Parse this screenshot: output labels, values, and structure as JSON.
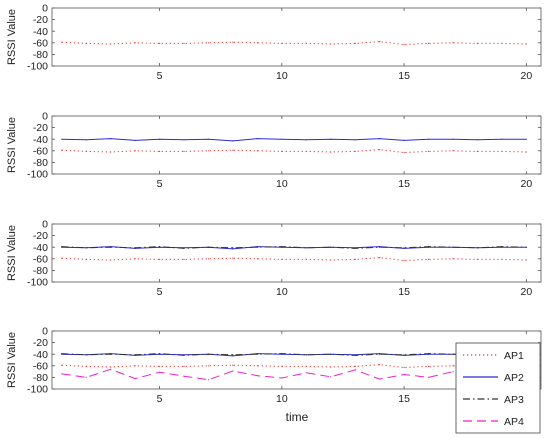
{
  "figure": {
    "xlabel": "time"
  },
  "legend": {
    "placement": "bottom-right",
    "entries": [
      {
        "series": "AP1",
        "label": "AP1"
      },
      {
        "series": "AP2",
        "label": "AP2"
      },
      {
        "series": "AP3",
        "label": "AP3"
      },
      {
        "series": "AP4",
        "label": "AP4"
      }
    ]
  },
  "series_styles": {
    "AP1": {
      "color": "#e8302a",
      "dash": "1.2,2.8"
    },
    "AP2": {
      "color": "#2b2bd8",
      "dash": ""
    },
    "AP3": {
      "color": "#333333",
      "dash": "7,3,1.5,3"
    },
    "AP4": {
      "color": "#ee22cc",
      "dash": "9,5"
    }
  },
  "chart_data": [
    {
      "type": "line",
      "title": "",
      "xlabel": "",
      "ylabel": "RSSI Value",
      "xlim": [
        0.6,
        20.6
      ],
      "ylim": [
        -100,
        0
      ],
      "xticks": [
        5,
        10,
        15,
        20
      ],
      "yticks": [
        0,
        -20,
        -40,
        -60,
        -80,
        -100
      ],
      "grid": false,
      "series": [
        "AP1"
      ]
    },
    {
      "type": "line",
      "title": "",
      "xlabel": "",
      "ylabel": "RSSI Value",
      "xlim": [
        0.6,
        20.6
      ],
      "ylim": [
        -100,
        0
      ],
      "xticks": [
        5,
        10,
        15,
        20
      ],
      "yticks": [
        0,
        -20,
        -40,
        -60,
        -80,
        -100
      ],
      "grid": false,
      "series": [
        "AP1",
        "AP2"
      ]
    },
    {
      "type": "line",
      "title": "",
      "xlabel": "",
      "ylabel": "RSSI Value",
      "xlim": [
        0.6,
        20.6
      ],
      "ylim": [
        -100,
        0
      ],
      "xticks": [
        5,
        10,
        15,
        20
      ],
      "yticks": [
        0,
        -20,
        -40,
        -60,
        -80,
        -100
      ],
      "grid": false,
      "series": [
        "AP1",
        "AP2",
        "AP3"
      ]
    },
    {
      "type": "line",
      "title": "",
      "xlabel": "time",
      "ylabel": "RSSI Value",
      "xlim": [
        0.6,
        20.6
      ],
      "ylim": [
        -100,
        0
      ],
      "xticks": [
        5,
        10,
        15,
        20
      ],
      "yticks": [
        0,
        -20,
        -40,
        -60,
        -80,
        -100
      ],
      "grid": false,
      "series": [
        "AP1",
        "AP2",
        "AP3",
        "AP4"
      ]
    }
  ],
  "series_data": {
    "x": [
      1,
      2,
      3,
      4,
      5,
      6,
      7,
      8,
      9,
      10,
      11,
      12,
      13,
      14,
      15,
      16,
      17,
      18,
      19,
      20
    ],
    "AP1": [
      -59,
      -61,
      -62,
      -60,
      -61,
      -61,
      -60,
      -59,
      -60,
      -61,
      -61,
      -62,
      -61,
      -58,
      -63,
      -61,
      -60,
      -61,
      -61,
      -62
    ],
    "AP2": [
      -40,
      -41,
      -39,
      -42,
      -40,
      -41,
      -40,
      -43,
      -39,
      -40,
      -41,
      -40,
      -41,
      -39,
      -42,
      -40,
      -40,
      -41,
      -40,
      -40
    ],
    "AP3": [
      -39,
      -41,
      -40,
      -41,
      -39,
      -42,
      -40,
      -41,
      -40,
      -39,
      -41,
      -40,
      -42,
      -40,
      -41,
      -39,
      -40,
      -41,
      -39,
      -40
    ],
    "AP4": [
      -74,
      -80,
      -66,
      -82,
      -71,
      -78,
      -84,
      -69,
      -77,
      -81,
      -72,
      -79,
      -67,
      -83,
      -75,
      -80,
      -70,
      -84,
      -73,
      -78
    ]
  }
}
